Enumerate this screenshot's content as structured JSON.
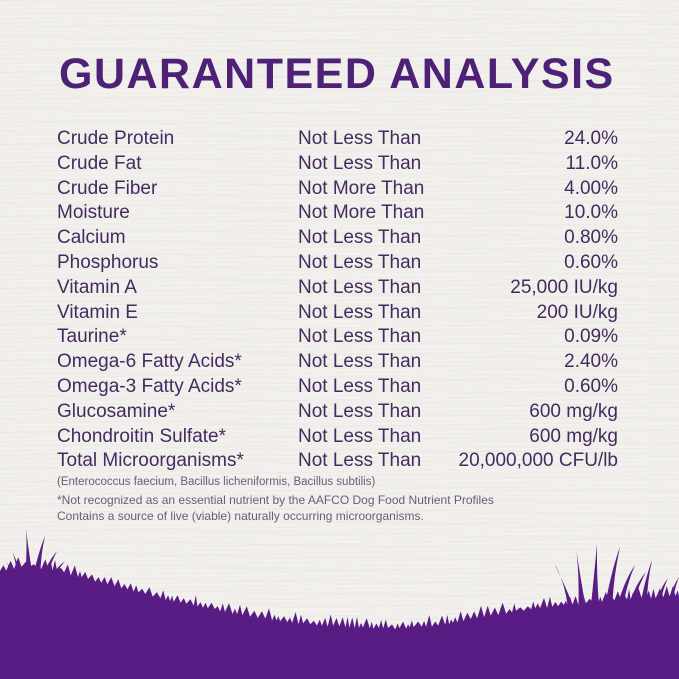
{
  "title": "GUARANTEED ANALYSIS",
  "table": {
    "rows": [
      {
        "nutrient": "Crude Protein",
        "basis": "Not Less Than",
        "value": "24.0%"
      },
      {
        "nutrient": "Crude Fat",
        "basis": "Not Less Than",
        "value": "11.0%"
      },
      {
        "nutrient": "Crude Fiber",
        "basis": "Not More Than",
        "value": "4.00%"
      },
      {
        "nutrient": "Moisture",
        "basis": "Not More Than",
        "value": "10.0%"
      },
      {
        "nutrient": "Calcium",
        "basis": "Not Less Than",
        "value": "0.80%"
      },
      {
        "nutrient": "Phosphorus",
        "basis": "Not Less Than",
        "value": "0.60%"
      },
      {
        "nutrient": "Vitamin A",
        "basis": "Not Less Than",
        "value": "25,000 IU/kg"
      },
      {
        "nutrient": "Vitamin E",
        "basis": "Not Less Than",
        "value": "200 IU/kg"
      },
      {
        "nutrient": "Taurine*",
        "basis": "Not Less Than",
        "value": "0.09%"
      },
      {
        "nutrient": "Omega-6 Fatty Acids*",
        "basis": "Not Less Than",
        "value": "2.40%"
      },
      {
        "nutrient": "Omega-3 Fatty Acids*",
        "basis": "Not Less Than",
        "value": "0.60%"
      },
      {
        "nutrient": "Glucosamine*",
        "basis": "Not Less Than",
        "value": "600 mg/kg"
      },
      {
        "nutrient": "Chondroitin Sulfate*",
        "basis": "Not Less Than",
        "value": "600 mg/kg"
      },
      {
        "nutrient": "Total Microorganisms*",
        "basis": "Not Less Than",
        "value": "20,000,000 CFU/lb"
      }
    ],
    "microorganisms_note": "(Enterococcus faecium, Bacillus licheniformis, Bacillus subtilis)"
  },
  "footnotes": {
    "line1": "*Not recognized as an essential nutrient by the AAFCO Dog Food Nutrient Profiles",
    "line2": "Contains a source of live (viable) naturally occurring microorganisms."
  },
  "colors": {
    "background": "#f5f3f0",
    "title": "#4d2175",
    "text": "#452a60",
    "footnote": "#6a5b7b",
    "grass": "#581c84"
  }
}
